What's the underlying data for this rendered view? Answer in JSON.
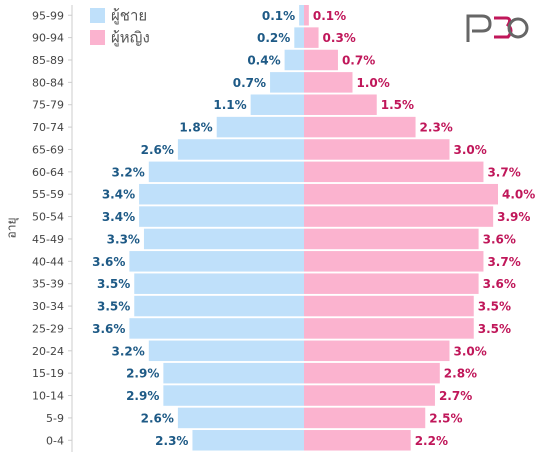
{
  "chart_data": {
    "type": "pyramid",
    "y_label": "อายุ",
    "categories": [
      "95-99",
      "90-94",
      "85-89",
      "80-84",
      "75-79",
      "70-74",
      "65-69",
      "60-64",
      "55-59",
      "50-54",
      "45-49",
      "40-44",
      "35-39",
      "30-34",
      "25-29",
      "20-24",
      "15-19",
      "10-14",
      "5-9",
      "0-4"
    ],
    "series": [
      {
        "name": "ผู้ชาย",
        "color": "#bfe0fa",
        "values": [
          0.1,
          0.2,
          0.4,
          0.7,
          1.1,
          1.8,
          2.6,
          3.2,
          3.4,
          3.4,
          3.3,
          3.6,
          3.5,
          3.5,
          3.6,
          3.2,
          2.9,
          2.9,
          2.6,
          2.3
        ],
        "value_labels": [
          "0.1%",
          "0.2%",
          "0.4%",
          "0.7%",
          "1.1%",
          "1.8%",
          "2.6%",
          "3.2%",
          "3.4%",
          "3.4%",
          "3.3%",
          "3.6%",
          "3.5%",
          "3.5%",
          "3.6%",
          "3.2%",
          "2.9%",
          "2.9%",
          "2.6%",
          "2.3%"
        ]
      },
      {
        "name": "ผู้หญิง",
        "color": "#fbb3cf",
        "values": [
          0.1,
          0.3,
          0.7,
          1.0,
          1.5,
          2.3,
          3.0,
          3.7,
          4.0,
          3.9,
          3.6,
          3.7,
          3.6,
          3.5,
          3.5,
          3.0,
          2.8,
          2.7,
          2.5,
          2.2
        ],
        "value_labels": [
          "0.1%",
          "0.3%",
          "0.7%",
          "1.0%",
          "1.5%",
          "2.3%",
          "3.0%",
          "3.7%",
          "4.0%",
          "3.9%",
          "3.6%",
          "3.7%",
          "3.6%",
          "3.5%",
          "3.5%",
          "3.0%",
          "2.8%",
          "2.7%",
          "2.5%",
          "2.2%"
        ]
      }
    ]
  }
}
